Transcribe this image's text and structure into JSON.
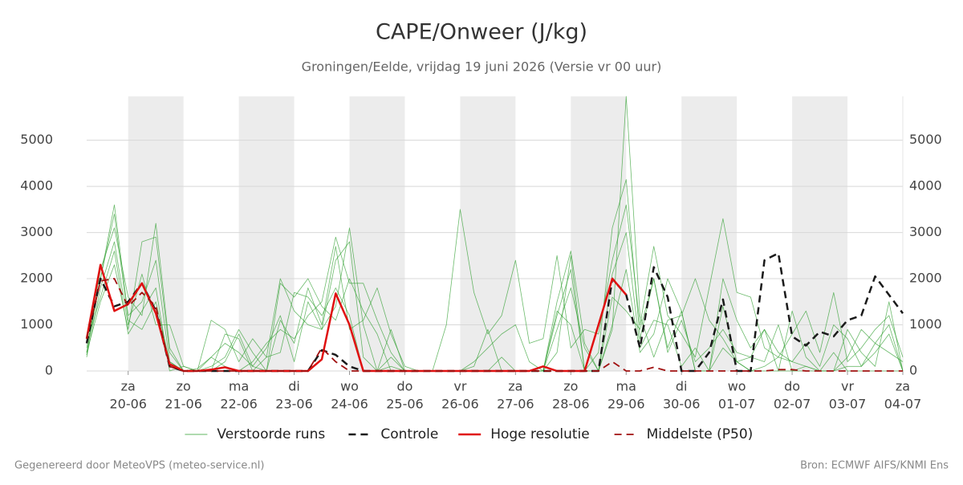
{
  "chart_data": {
    "type": "line",
    "title": "CAPE/Onweer (J/kg)",
    "subtitle": "Groningen/Eelde, vrijdag 19 juni 2026 (Versie vr 00 uur)",
    "footer_left": "Gegenereerd door MeteoVPS (meteo-service.nl)",
    "footer_right": "Bron: ECMWF AIFS/KNMI Ens",
    "categories": [
      null,
      null,
      null,
      "20-06",
      null,
      null,
      null,
      "21-06",
      null,
      null,
      null,
      "22-06",
      null,
      null,
      null,
      "23-06",
      null,
      null,
      null,
      "24-06",
      null,
      null,
      null,
      "25-06",
      null,
      null,
      null,
      "26-06",
      null,
      null,
      null,
      "27-06",
      null,
      null,
      null,
      "28-06",
      null,
      null,
      null,
      "29-06",
      null,
      null,
      null,
      "30-06",
      null,
      null,
      null,
      "01-07",
      null,
      null,
      null,
      "02-07",
      null,
      null,
      null,
      "03-07",
      null,
      null,
      null,
      "04-07"
    ],
    "weekday_labels": [
      null,
      null,
      null,
      "za",
      null,
      null,
      null,
      "zo",
      null,
      null,
      null,
      "ma",
      null,
      null,
      null,
      "di",
      null,
      null,
      null,
      "wo",
      null,
      null,
      null,
      "do",
      null,
      null,
      null,
      "vr",
      null,
      null,
      null,
      "za",
      null,
      null,
      null,
      "zo",
      null,
      null,
      null,
      "ma",
      null,
      null,
      null,
      "di",
      null,
      null,
      null,
      "wo",
      null,
      null,
      null,
      "do",
      null,
      null,
      null,
      "vr",
      null,
      null,
      null,
      "za"
    ],
    "ylim": [
      0,
      5950
    ],
    "yticks": [
      0,
      1000,
      2000,
      3000,
      4000,
      5000
    ],
    "grid": true,
    "legend": "bottom",
    "series": [
      {
        "name": "Verstoorde runs",
        "color": "#2e9e2e",
        "line_style": "solid",
        "line_width": 0.8,
        "members": [
          [
            400,
            2000,
            3600,
            1200,
            1500,
            2400,
            200,
            0,
            50,
            300,
            100,
            0,
            200,
            600,
            900,
            700,
            1200,
            1500,
            2900,
            1900,
            1900,
            1100,
            400,
            0,
            0,
            0,
            0,
            0,
            200,
            500,
            800,
            1000,
            200,
            0,
            1500,
            2600,
            600,
            0,
            900,
            5950,
            1200,
            300,
            1100,
            1200,
            2000,
            1100,
            700,
            200,
            300,
            900,
            400,
            200,
            100,
            0,
            0,
            300,
            900,
            600,
            400,
            200
          ],
          [
            300,
            1800,
            2800,
            1000,
            2100,
            1000,
            1000,
            100,
            0,
            0,
            800,
            700,
            0,
            300,
            2000,
            1300,
            1000,
            900,
            1400,
            3100,
            1000,
            0,
            900,
            0,
            0,
            0,
            1000,
            3500,
            1700,
            800,
            1200,
            2400,
            600,
            700,
            2500,
            500,
            900,
            800,
            2400,
            3600,
            1000,
            2700,
            1200,
            800,
            300,
            1800,
            3300,
            1700,
            1600,
            500,
            300,
            800,
            1300,
            400,
            1700,
            200,
            500,
            900,
            1200,
            300
          ],
          [
            350,
            2200,
            3100,
            1600,
            1200,
            3200,
            500,
            0,
            0,
            100,
            300,
            900,
            400,
            0,
            1100,
            600,
            1800,
            1000,
            2700,
            900,
            1100,
            1800,
            800,
            100,
            0,
            0,
            0,
            0,
            0,
            0,
            0,
            0,
            0,
            0,
            1200,
            2200,
            0,
            400,
            3100,
            4150,
            700,
            2000,
            500,
            1300,
            0,
            0,
            2000,
            1100,
            500,
            900,
            0,
            1300,
            300,
            0,
            0,
            900,
            400,
            100,
            1500,
            0
          ],
          [
            600,
            1600,
            2600,
            800,
            1300,
            1800,
            0,
            100,
            0,
            1100,
            900,
            200,
            700,
            300,
            400,
            1700,
            1600,
            1200,
            1800,
            1200,
            0,
            0,
            300,
            0,
            0,
            0,
            0,
            0,
            100,
            900,
            0,
            0,
            0,
            0,
            900,
            1800,
            500,
            0,
            2100,
            3000,
            500,
            1100,
            1000,
            100,
            500,
            0,
            1400,
            200,
            0,
            100,
            300,
            200,
            600,
            100,
            1000,
            700,
            100,
            600,
            1000,
            0
          ],
          [
            500,
            2000,
            3400,
            1100,
            900,
            1500,
            200,
            0,
            0,
            300,
            600,
            400,
            100,
            500,
            1200,
            200,
            1500,
            900,
            2400,
            2800,
            300,
            0,
            100,
            0,
            0,
            0,
            0,
            0,
            0,
            0,
            300,
            0,
            0,
            0,
            1300,
            1000,
            0,
            0,
            1600,
            1300,
            900,
            2000,
            400,
            1100,
            200,
            500,
            900,
            400,
            300,
            200,
            1000,
            0,
            100,
            0,
            0,
            100,
            100,
            400,
            800,
            0
          ],
          [
            400,
            1500,
            2300,
            900,
            2800,
            2900,
            400,
            0,
            0,
            0,
            200,
            800,
            100,
            0,
            1900,
            1600,
            2000,
            1400,
            1100,
            2000,
            1300,
            800,
            0,
            0,
            0,
            0,
            0,
            0,
            0,
            0,
            0,
            0,
            0,
            0,
            400,
            2500,
            0,
            0,
            1000,
            2200,
            400,
            800,
            2000,
            1300,
            0,
            0,
            500,
            200,
            0,
            0,
            0,
            0,
            0,
            0,
            400,
            0,
            0,
            0,
            0,
            0
          ]
        ]
      },
      {
        "name": "Controle",
        "color": "#1a1a1a",
        "line_style": "dashed",
        "line_width": 2.5,
        "values": [
          600,
          2000,
          1400,
          1500,
          1900,
          1300,
          100,
          0,
          0,
          0,
          0,
          0,
          0,
          0,
          0,
          0,
          0,
          450,
          350,
          100,
          0,
          0,
          0,
          0,
          0,
          0,
          0,
          0,
          0,
          0,
          0,
          0,
          0,
          0,
          0,
          0,
          0,
          0,
          2000,
          1650,
          500,
          2250,
          1600,
          0,
          0,
          400,
          1550,
          0,
          0,
          2400,
          2550,
          750,
          550,
          850,
          750,
          1100,
          1200,
          2050,
          1650,
          1250
        ]
      },
      {
        "name": "Hoge resolutie",
        "color": "#e01010",
        "line_style": "solid",
        "line_width": 2.5,
        "values": [
          700,
          2300,
          1300,
          1450,
          1900,
          1250,
          150,
          0,
          0,
          30,
          80,
          0,
          0,
          0,
          0,
          0,
          0,
          250,
          1680,
          1000,
          0,
          0,
          0,
          0,
          0,
          0,
          0,
          0,
          0,
          0,
          0,
          0,
          0,
          100,
          0,
          0,
          0,
          1000,
          2000,
          1650,
          null,
          null,
          null,
          null,
          null,
          null,
          null,
          null,
          null,
          null,
          null,
          null,
          null,
          null,
          null,
          null,
          null,
          null,
          null,
          null
        ]
      },
      {
        "name": "Middelste (P50)",
        "color": "#a01010",
        "line_style": "dashed",
        "line_width": 1.8,
        "values": [
          700,
          1950,
          2000,
          1400,
          1700,
          1400,
          100,
          0,
          0,
          0,
          0,
          0,
          0,
          0,
          0,
          0,
          0,
          500,
          200,
          0,
          0,
          0,
          0,
          0,
          0,
          0,
          0,
          0,
          0,
          0,
          0,
          0,
          0,
          0,
          0,
          0,
          0,
          0,
          200,
          0,
          0,
          80,
          0,
          0,
          0,
          0,
          0,
          0,
          0,
          0,
          30,
          30,
          0,
          0,
          0,
          0,
          0,
          0,
          0,
          0
        ]
      }
    ]
  }
}
